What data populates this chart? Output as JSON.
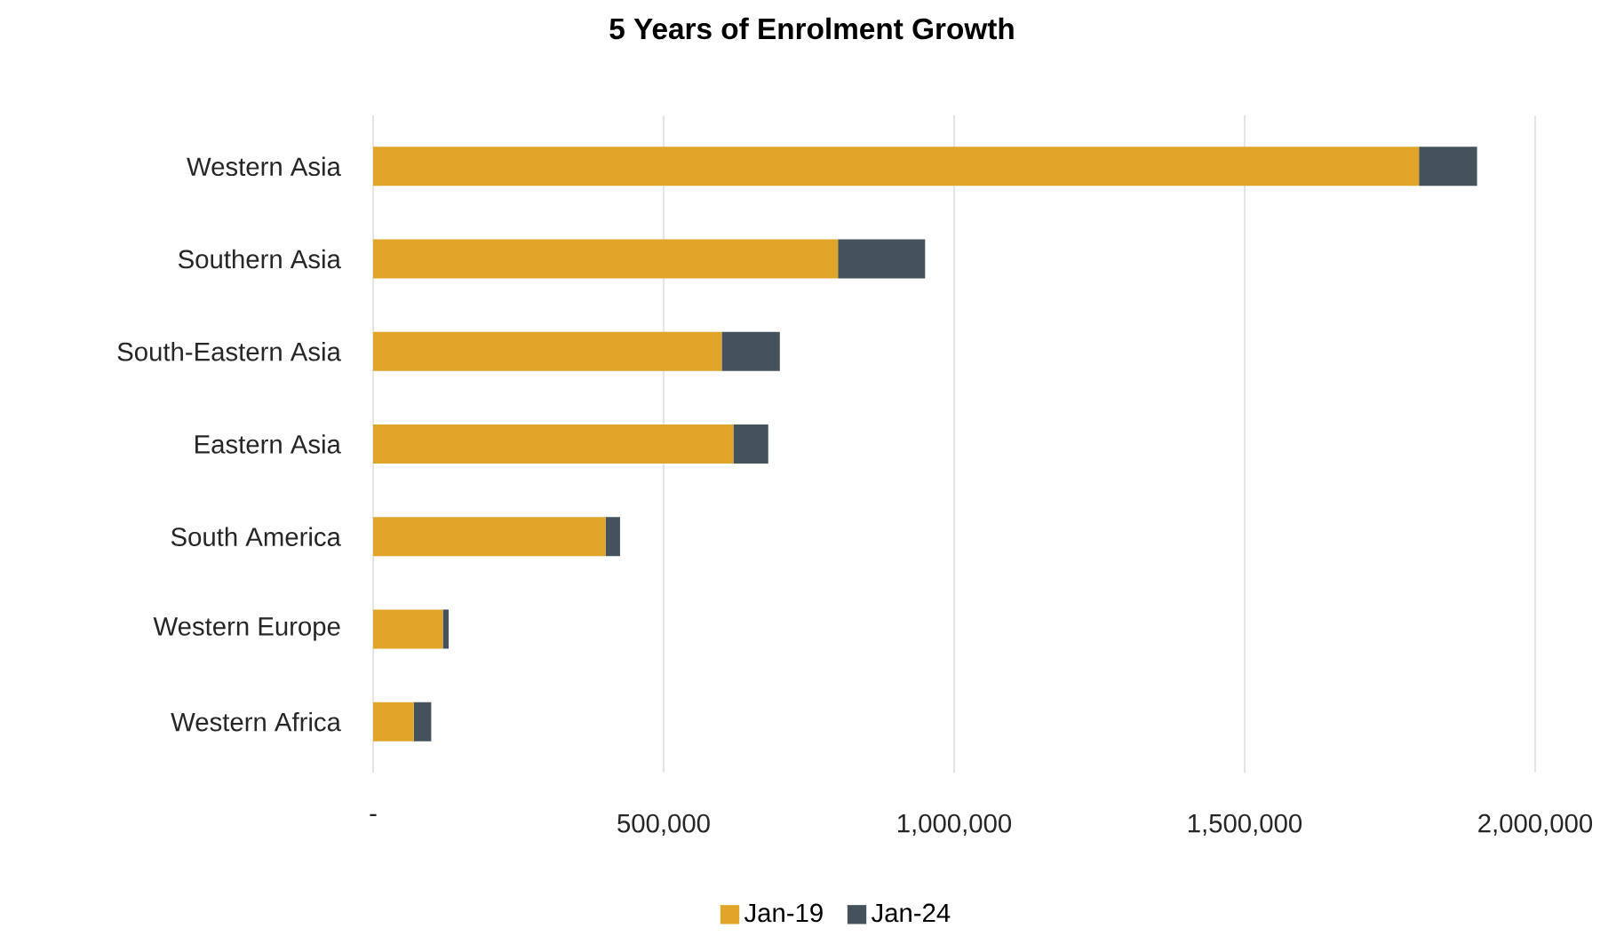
{
  "chart_data": {
    "type": "bar",
    "title": "5 Years of Enrolment Growth",
    "orientation": "horizontal",
    "stacked": true,
    "categories": [
      "Western Asia",
      "Southern Asia",
      "South-Eastern Asia",
      "Eastern Asia",
      "South America",
      "Western Europe",
      "Western Africa"
    ],
    "series": [
      {
        "name": "Jan-19",
        "color": "#e0a428",
        "values": [
          1800000,
          800000,
          600000,
          620000,
          400000,
          120000,
          70000
        ]
      },
      {
        "name": "Jan-24",
        "color": "#44525c",
        "values": [
          100000,
          150000,
          100000,
          60000,
          25000,
          10000,
          30000
        ]
      }
    ],
    "xlim": [
      0,
      2000000
    ],
    "xticks": [
      {
        "value": 0,
        "label": "-"
      },
      {
        "value": 500000,
        "label": "500,000"
      },
      {
        "value": 1000000,
        "label": "1,000,000"
      },
      {
        "value": 1500000,
        "label": "1,500,000"
      },
      {
        "value": 2000000,
        "label": "2,000,000"
      }
    ],
    "grid": "x",
    "legend": "bottom"
  }
}
